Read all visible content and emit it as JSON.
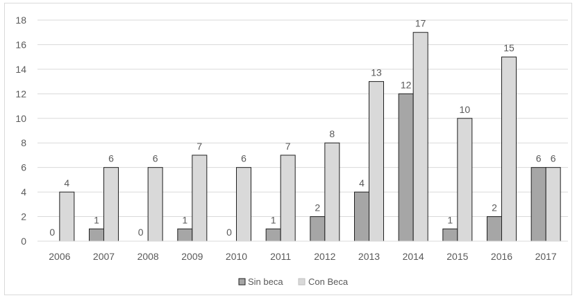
{
  "chart_data": {
    "type": "bar",
    "categories": [
      "2006",
      "2007",
      "2008",
      "2009",
      "2010",
      "2011",
      "2012",
      "2013",
      "2014",
      "2015",
      "2016",
      "2017"
    ],
    "series": [
      {
        "name": "Sin beca",
        "values": [
          0,
          1,
          0,
          1,
          0,
          1,
          2,
          4,
          12,
          1,
          2,
          6
        ],
        "color": "#a6a6a6"
      },
      {
        "name": "Con Beca",
        "values": [
          4,
          6,
          6,
          7,
          6,
          7,
          8,
          13,
          17,
          10,
          15,
          6
        ],
        "color": "#d9d9d9"
      }
    ],
    "ylim": [
      0,
      18
    ],
    "yticks": [
      "0",
      "2",
      "4",
      "6",
      "8",
      "10",
      "12",
      "14",
      "16",
      "18"
    ],
    "grid": true,
    "legend_position": "bottom",
    "data_labels": true
  }
}
